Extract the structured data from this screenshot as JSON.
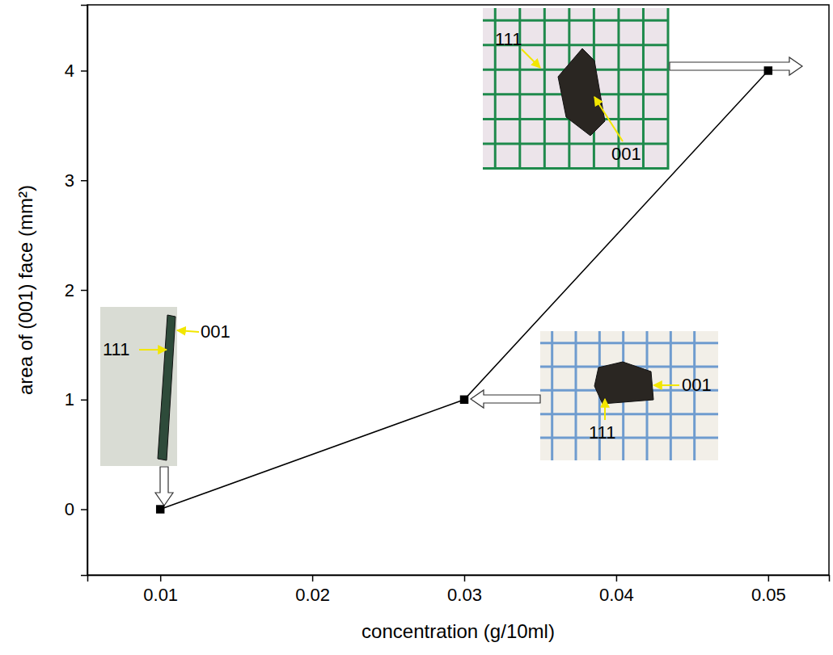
{
  "chart_data": {
    "type": "line",
    "x_label": "concentration (g/10ml)",
    "y_label": "area of (001) face (mm²)",
    "x": [
      0.01,
      0.03,
      0.05
    ],
    "values": [
      0,
      1,
      4
    ],
    "color": "#000000",
    "marker": "square",
    "line_style": "solid",
    "xlim": [
      0.0052,
      0.054
    ],
    "ylim": [
      -0.6,
      4.6
    ],
    "xticks": [
      0.01,
      0.02,
      0.03,
      0.04,
      0.05
    ],
    "yticks": [
      0,
      1,
      2,
      3,
      4
    ],
    "grid": false,
    "annotations": [
      [
        "001",
        "111"
      ],
      [
        "001",
        "111"
      ],
      [
        "111",
        "001"
      ]
    ]
  }
}
